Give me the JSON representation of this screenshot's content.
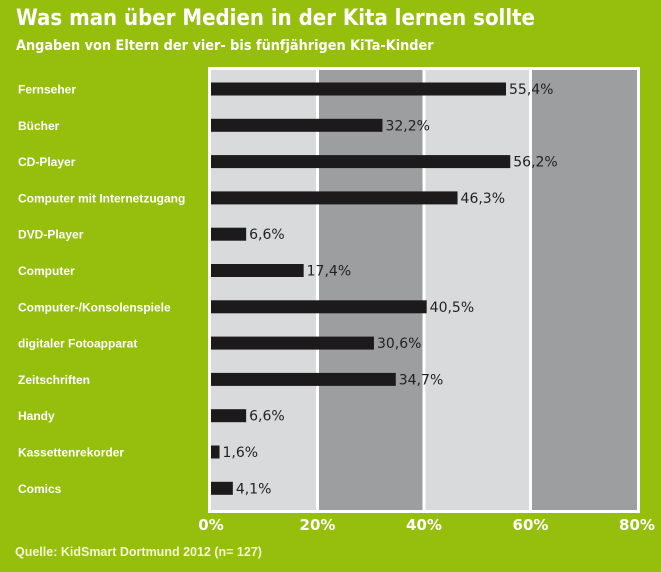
{
  "colors": {
    "background": "#96bf0d",
    "band_light": "#d9dadc",
    "band_dark": "#9d9ea0",
    "bar": "#1c1a1a",
    "frame": "#ffffff"
  },
  "chart_data": {
    "type": "bar",
    "orientation": "horizontal",
    "title": "Was man über Medien in der Kita lernen sollte",
    "subtitle": "Angaben von Eltern der vier- bis fünfjährigen KiTa-Kinder",
    "categories": [
      "Fernseher",
      "Bücher",
      "CD-Player",
      "Computer mit Internetzugang",
      "DVD-Player",
      "Computer",
      "Computer-/Konsolenspiele",
      "digitaler Fotoapparat",
      "Zeitschriften",
      "Handy",
      "Kassettenrekorder",
      "Comics"
    ],
    "values": [
      55.4,
      32.2,
      56.2,
      46.3,
      6.6,
      17.4,
      40.5,
      30.6,
      34.7,
      6.6,
      1.6,
      4.1
    ],
    "value_labels": [
      "55,4%",
      "32,2%",
      "56,2%",
      "46,3%",
      "6,6%",
      "17,4%",
      "40,5%",
      "30,6%",
      "34,7%",
      "6,6%",
      "1,6%",
      "4,1%"
    ],
    "xlim": [
      0,
      80
    ],
    "x_ticks": [
      0,
      20,
      40,
      60,
      80
    ],
    "x_tick_labels": [
      "0%",
      "20%",
      "40%",
      "60%",
      "80%"
    ],
    "xlabel": "",
    "ylabel": "",
    "grid": "alternating bands",
    "legend": "none",
    "source": "Quelle: KidSmart Dortmund 2012 (n= 127)"
  }
}
